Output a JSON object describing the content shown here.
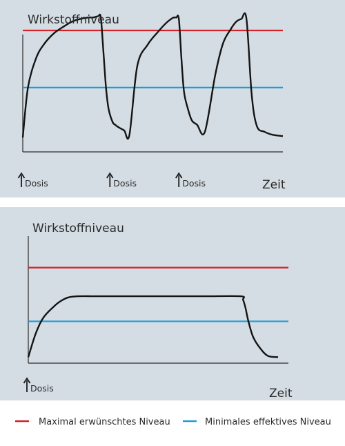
{
  "chart_data": [
    {
      "type": "line",
      "ylabel": "Wirkstoffniveau",
      "xlabel": "Zeit",
      "dose_label": "Dosis",
      "max_level": 0.85,
      "min_level": 0.45,
      "dose_times": [
        0.0,
        0.335,
        0.6
      ],
      "x": [
        0.0,
        0.02,
        0.05,
        0.08,
        0.12,
        0.16,
        0.2,
        0.25,
        0.27,
        0.29,
        0.3,
        0.31,
        0.32,
        0.33,
        0.345,
        0.355,
        0.37,
        0.39,
        0.41,
        0.44,
        0.48,
        0.52,
        0.55,
        0.57,
        0.58,
        0.59,
        0.6,
        0.61,
        0.62,
        0.635,
        0.65,
        0.67,
        0.7,
        0.74,
        0.77,
        0.8,
        0.82,
        0.84,
        0.86,
        0.88,
        0.9,
        0.93,
        0.96,
        1.0
      ],
      "y": [
        0.1,
        0.45,
        0.65,
        0.75,
        0.83,
        0.88,
        0.92,
        0.94,
        0.94,
        0.95,
        0.94,
        0.7,
        0.45,
        0.3,
        0.21,
        0.19,
        0.17,
        0.15,
        0.12,
        0.6,
        0.75,
        0.84,
        0.9,
        0.93,
        0.94,
        0.94,
        0.93,
        0.65,
        0.42,
        0.3,
        0.22,
        0.19,
        0.14,
        0.54,
        0.76,
        0.86,
        0.91,
        0.93,
        0.93,
        0.4,
        0.18,
        0.14,
        0.12,
        0.11
      ],
      "series": [
        {
          "name": "Wirkstoffniveau",
          "color": "#141414"
        }
      ],
      "colors": {
        "max": "#d62128",
        "min": "#1e9dd8",
        "curve": "#141414"
      }
    },
    {
      "type": "line",
      "ylabel": "Wirkstoffniveau",
      "xlabel": "Zeit",
      "dose_label": "Dosis",
      "max_level": 0.8,
      "min_level": 0.35,
      "dose_times": [
        0.0
      ],
      "x": [
        0.0,
        0.03,
        0.06,
        0.1,
        0.13,
        0.16,
        0.2,
        0.3,
        0.5,
        0.7,
        0.85,
        0.86,
        0.87,
        0.88,
        0.9,
        0.93,
        0.96,
        1.0
      ],
      "y": [
        0.05,
        0.25,
        0.38,
        0.47,
        0.52,
        0.55,
        0.56,
        0.56,
        0.56,
        0.56,
        0.56,
        0.53,
        0.46,
        0.36,
        0.22,
        0.12,
        0.06,
        0.05
      ],
      "series": [
        {
          "name": "Wirkstoffniveau",
          "color": "#141414"
        }
      ],
      "colors": {
        "max": "#d62128",
        "min": "#1e9dd8",
        "curve": "#141414"
      }
    }
  ],
  "legend": {
    "max_label": "Maximal erwünschtes Niveau",
    "min_label": "Minimales effektives Niveau",
    "max_color": "#d62128",
    "min_color": "#1e9dd8"
  }
}
